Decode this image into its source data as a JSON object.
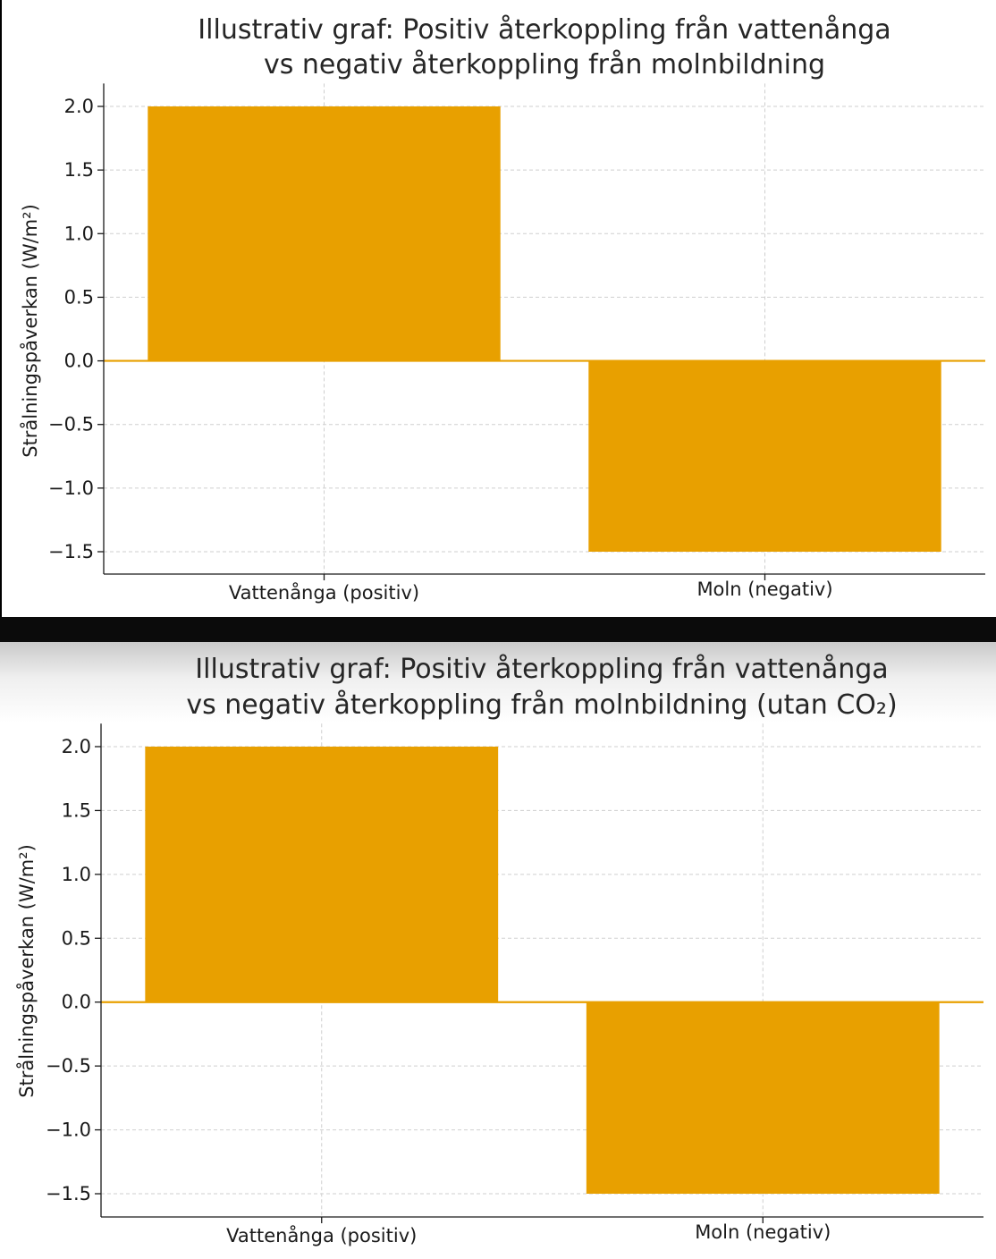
{
  "chart_data": [
    {
      "type": "bar",
      "title_lines": [
        "Illustrativ graf: Positiv återkoppling från vattenånga",
        "vs negativ återkoppling från molnbildning"
      ],
      "xlabel": "",
      "ylabel": "Strålningspåverkan (W/m²)",
      "categories": [
        "Vattenånga (positiv)",
        "Moln (negativ)"
      ],
      "values": [
        2.0,
        -1.5
      ],
      "ylim": [
        -1.68,
        2.18
      ],
      "yticks": [
        2.0,
        1.5,
        1.0,
        0.5,
        0.0,
        -0.5,
        -1.0,
        -1.5
      ],
      "ytick_labels": [
        "2.0",
        "1.5",
        "1.0",
        "0.5",
        "0.0",
        "−0.5",
        "−1.0",
        "−1.5"
      ],
      "grid": true,
      "zero_line": true,
      "bar_color": "#e8a000"
    },
    {
      "type": "bar",
      "title_lines": [
        "Illustrativ graf: Positiv återkoppling från vattenånga",
        "vs negativ återkoppling från molnbildning (utan CO₂)"
      ],
      "xlabel": "",
      "ylabel": "Strålningspåverkan (W/m²)",
      "categories": [
        "Vattenånga (positiv)",
        "Moln (negativ)"
      ],
      "values": [
        2.0,
        -1.5
      ],
      "ylim": [
        -1.68,
        2.18
      ],
      "yticks": [
        2.0,
        1.5,
        1.0,
        0.5,
        0.0,
        -0.5,
        -1.0,
        -1.5
      ],
      "ytick_labels": [
        "2.0",
        "1.5",
        "1.0",
        "0.5",
        "0.0",
        "−0.5",
        "−1.0",
        "−1.5"
      ],
      "grid": true,
      "zero_line": true,
      "bar_color": "#e8a000"
    }
  ]
}
